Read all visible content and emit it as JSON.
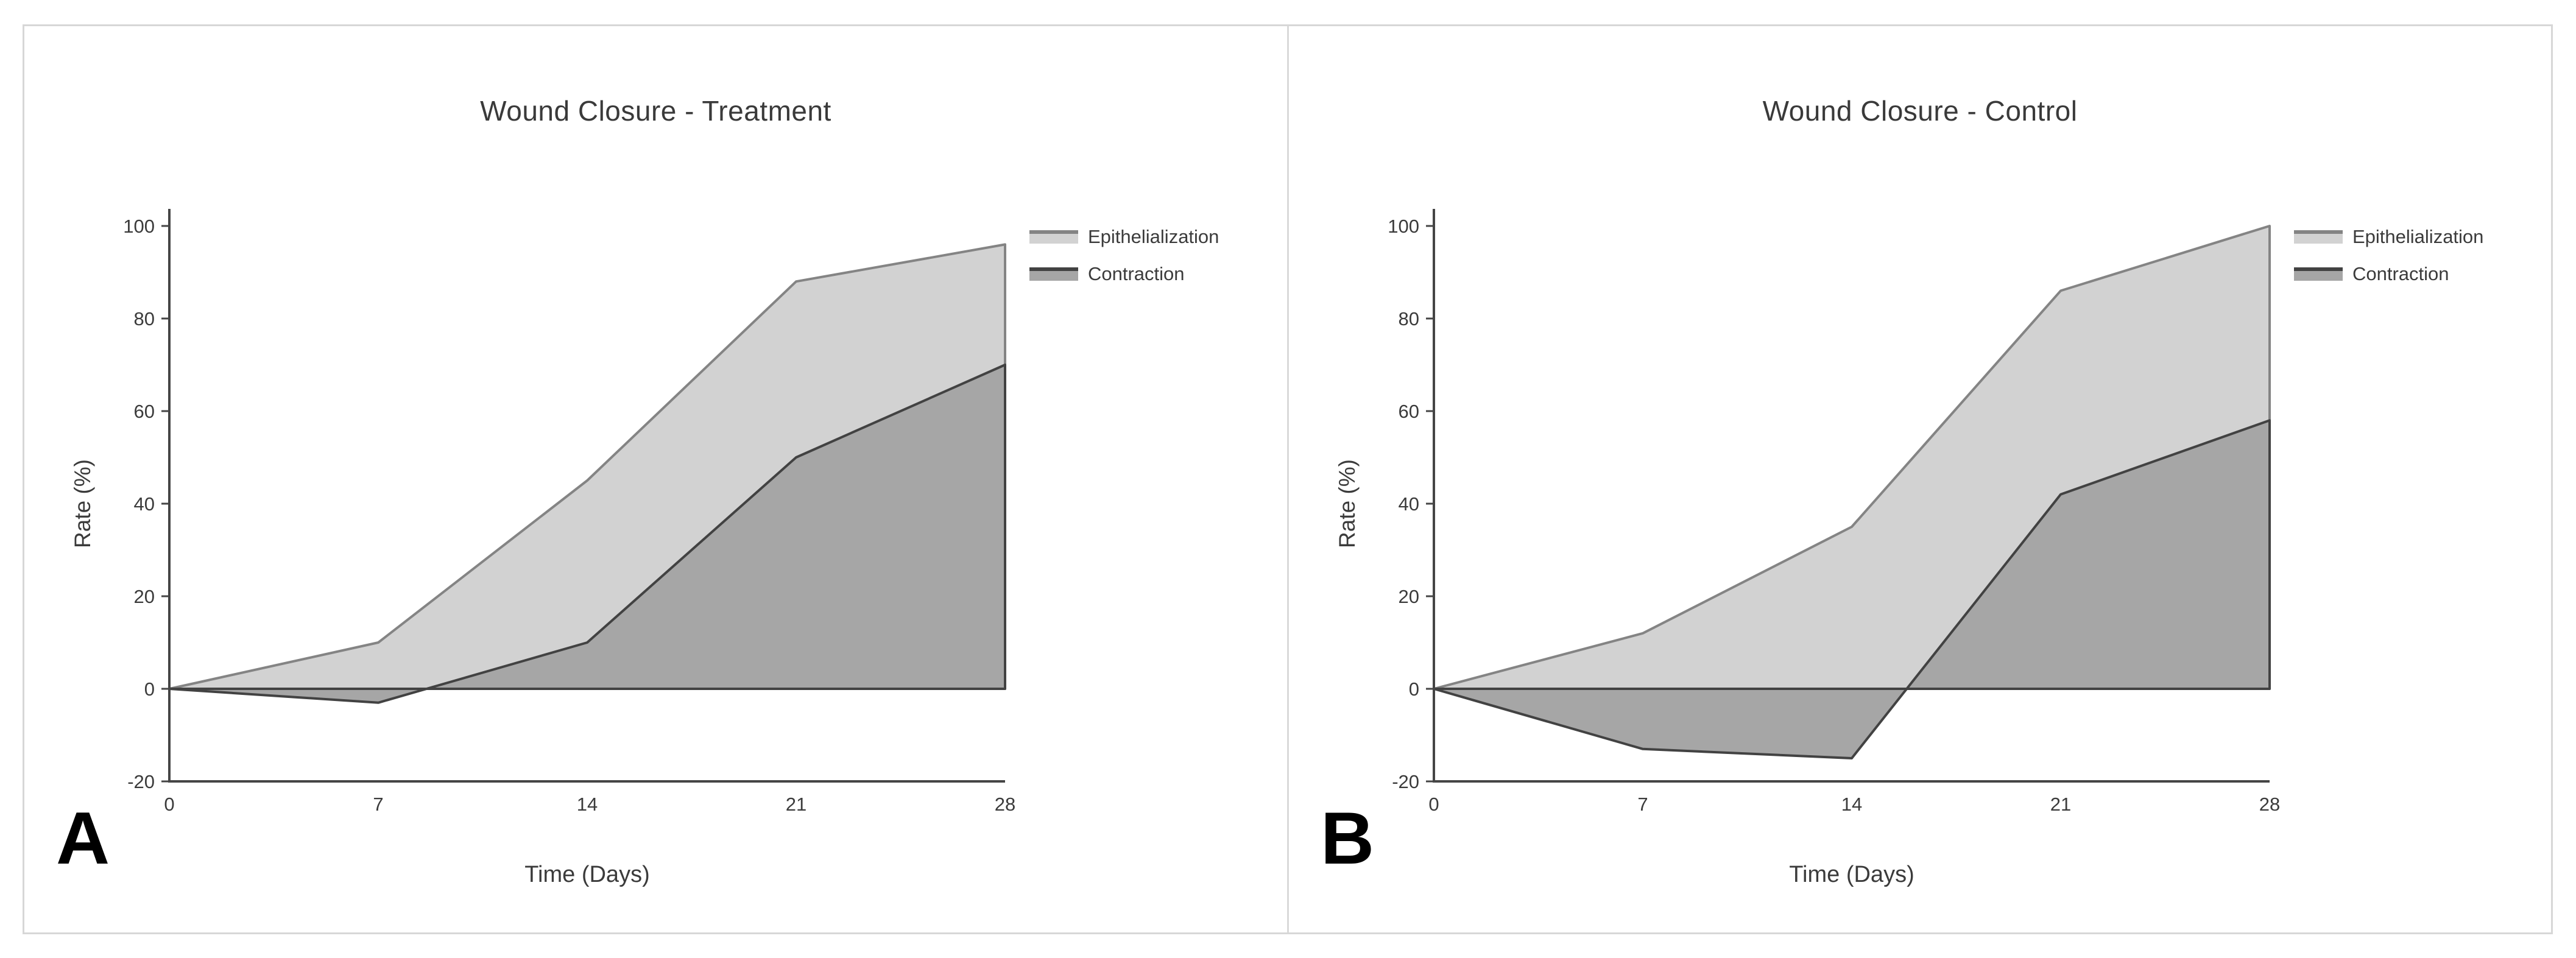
{
  "figure": {
    "background": "#ffffff",
    "card_border_color": "#d7d7d7",
    "divider_color": "#d9d9d9",
    "axis_color": "#454545",
    "text_color": "#3b3b3b"
  },
  "panels": [
    {
      "label": "A"
    },
    {
      "label": "B"
    }
  ],
  "chart_data": [
    {
      "type": "area",
      "title": "Wound Closure - Treatment",
      "xlabel": "Time (Days)",
      "ylabel": "Rate (%)",
      "x": [
        0,
        7,
        14,
        21,
        28
      ],
      "xticks": [
        0,
        7,
        14,
        21,
        28
      ],
      "yticks": [
        -20,
        0,
        20,
        40,
        60,
        80,
        100
      ],
      "ylim": [
        -20,
        100
      ],
      "xlim": [
        0,
        28
      ],
      "grid": false,
      "legend_position": "top-right",
      "series": [
        {
          "name": "Epithelialization",
          "values": [
            0,
            10,
            45,
            88,
            96
          ],
          "fill": "#d2d2d2",
          "line": "#848484"
        },
        {
          "name": "Contraction",
          "values": [
            0,
            -3,
            10,
            50,
            70
          ],
          "fill": "#a6a6a6",
          "line": "#424242"
        }
      ]
    },
    {
      "type": "area",
      "title": "Wound Closure - Control",
      "xlabel": "Time (Days)",
      "ylabel": "Rate (%)",
      "x": [
        0,
        7,
        14,
        21,
        28
      ],
      "xticks": [
        0,
        7,
        14,
        21,
        28
      ],
      "yticks": [
        -20,
        0,
        20,
        40,
        60,
        80,
        100
      ],
      "ylim": [
        -20,
        100
      ],
      "xlim": [
        0,
        28
      ],
      "grid": false,
      "legend_position": "top-right",
      "series": [
        {
          "name": "Epithelialization",
          "values": [
            0,
            12,
            35,
            86,
            100
          ],
          "fill": "#d2d2d2",
          "line": "#848484"
        },
        {
          "name": "Contraction",
          "values": [
            0,
            -13,
            -15,
            42,
            58
          ],
          "fill": "#a6a6a6",
          "line": "#424242"
        }
      ]
    }
  ]
}
